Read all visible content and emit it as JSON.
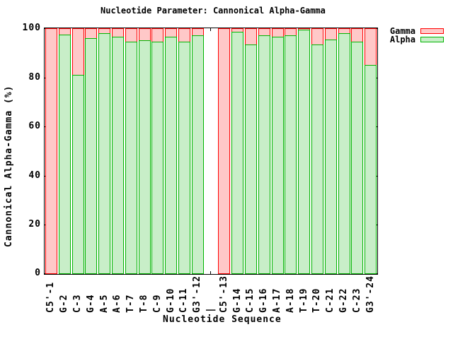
{
  "window": {
    "background": "#ffffff"
  },
  "chart_data": {
    "type": "bar",
    "stacked": true,
    "title": "Nucleotide Parameter: Cannonical Alpha-Gamma",
    "xlabel": "Nucleotide Sequence",
    "ylabel": "Cannonical Alpha-Gamma (%)",
    "ylim": [
      0,
      100
    ],
    "yticks": [
      0,
      20,
      40,
      60,
      80,
      100
    ],
    "grid": false,
    "legend_position": "top-right-outside",
    "separator_index": 12,
    "categories": [
      "C5'-1",
      "G-2",
      "C-3",
      "G-4",
      "A-5",
      "A-6",
      "T-7",
      "T-8",
      "C-9",
      "G-10",
      "C-11",
      "G3'-12",
      "|",
      "C5'-13",
      "G-14",
      "C-15",
      "G-16",
      "A-17",
      "A-18",
      "T-19",
      "T-20",
      "C-21",
      "G-22",
      "C-23",
      "G3'-24"
    ],
    "series": [
      {
        "name": "Alpha",
        "fill": "#c8eec8",
        "border": "#00b400",
        "values": [
          0,
          97.5,
          81,
          96,
          98,
          96.5,
          94.5,
          95,
          94.5,
          96.5,
          94.5,
          97,
          null,
          0,
          98.5,
          93.5,
          97,
          96.5,
          97,
          99.5,
          93.5,
          95.5,
          98,
          94.5,
          85
        ]
      },
      {
        "name": "Gamma",
        "fill": "#ffc8c8",
        "border": "#ff0000",
        "values": [
          100,
          2.5,
          19,
          4,
          2,
          3.5,
          5.5,
          5,
          5.5,
          3.5,
          5.5,
          3,
          null,
          100,
          1.5,
          6.5,
          3,
          3.5,
          3,
          0.5,
          6.5,
          4.5,
          2,
          5.5,
          15
        ]
      }
    ],
    "legend": {
      "entries": [
        "Gamma",
        "Alpha"
      ]
    }
  },
  "colors": {
    "axis": "#000000",
    "alpha_fill": "#c8eec8",
    "alpha_border": "#00b400",
    "gamma_fill": "#ffc8c8",
    "gamma_border": "#ff0000"
  }
}
